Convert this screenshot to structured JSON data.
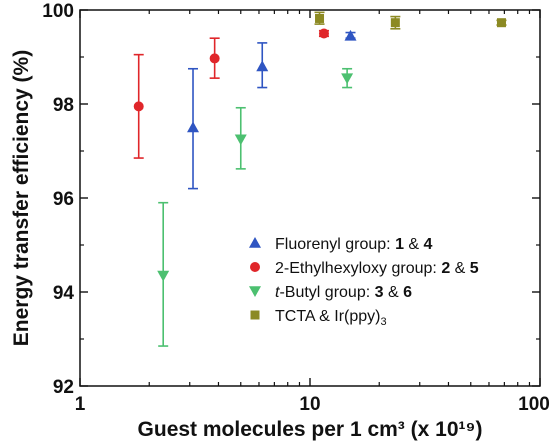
{
  "chart_data": {
    "type": "scatter",
    "xscale": "log",
    "xlim": [
      1,
      100
    ],
    "ylim": [
      92,
      100
    ],
    "xticks": [
      1,
      10,
      100
    ],
    "xtick_labels": [
      "1",
      "10",
      "100"
    ],
    "yticks": [
      92,
      94,
      96,
      98,
      100
    ],
    "ytick_labels": [
      "92",
      "94",
      "96",
      "98",
      "100"
    ],
    "xlabel": "Guest molecules per 1 cm³ (x 10¹⁹)",
    "ylabel": "Energy transfer efficiency (%)",
    "grid": false,
    "legend_position": "lower-right",
    "series": [
      {
        "name": "Fluorenyl group: 1 & 4",
        "marker": "triangle-up",
        "color": "#2f55c2",
        "points": [
          {
            "x": 3.1,
            "y": 97.5,
            "err_low": 96.2,
            "err_high": 98.75
          },
          {
            "x": 6.2,
            "y": 98.8,
            "err_low": 98.35,
            "err_high": 99.3
          },
          {
            "x": 15.0,
            "y": 99.45,
            "err_low": 99.4,
            "err_high": 99.52
          }
        ]
      },
      {
        "name": "2-Ethylhexyloxy group: 2 & 5",
        "marker": "circle",
        "color": "#e0262a",
        "points": [
          {
            "x": 1.8,
            "y": 97.95,
            "err_low": 96.85,
            "err_high": 99.05
          },
          {
            "x": 3.85,
            "y": 98.97,
            "err_low": 98.55,
            "err_high": 99.4
          },
          {
            "x": 11.5,
            "y": 99.5,
            "err_low": 99.44,
            "err_high": 99.56
          }
        ]
      },
      {
        "name": "t-Butyl group: 3 & 6",
        "marker": "triangle-down",
        "color": "#4cc070",
        "points": [
          {
            "x": 2.3,
            "y": 94.35,
            "err_low": 92.85,
            "err_high": 95.9
          },
          {
            "x": 5.0,
            "y": 97.25,
            "err_low": 96.62,
            "err_high": 97.92
          },
          {
            "x": 14.5,
            "y": 98.55,
            "err_low": 98.35,
            "err_high": 98.75
          }
        ]
      },
      {
        "name": "TCTA & Ir(ppy)3",
        "marker": "square",
        "color": "#8c8a23",
        "points": [
          {
            "x": 11.0,
            "y": 99.82,
            "err_low": 99.7,
            "err_high": 99.95
          },
          {
            "x": 23.5,
            "y": 99.73,
            "err_low": 99.6,
            "err_high": 99.86
          },
          {
            "x": 68.0,
            "y": 99.73,
            "err_low": 99.68,
            "err_high": 99.78
          }
        ]
      }
    ],
    "legend": [
      {
        "marker": "triangle-up",
        "color": "#2f55c2",
        "text": "Fluorenyl group: ",
        "bold1": "1",
        "mid": " & ",
        "bold2": "4"
      },
      {
        "marker": "circle",
        "color": "#e0262a",
        "text": "2-Ethylhexyloxy group: ",
        "bold1": "2",
        "mid": " & ",
        "bold2": "5"
      },
      {
        "marker": "triangle-down",
        "color": "#4cc070",
        "italic": "t",
        "text": "-Butyl group: ",
        "bold1": "3",
        "mid": " & ",
        "bold2": "6"
      },
      {
        "marker": "square",
        "color": "#8c8a23",
        "text": "TCTA & Ir(ppy)",
        "sub": "3"
      }
    ]
  }
}
